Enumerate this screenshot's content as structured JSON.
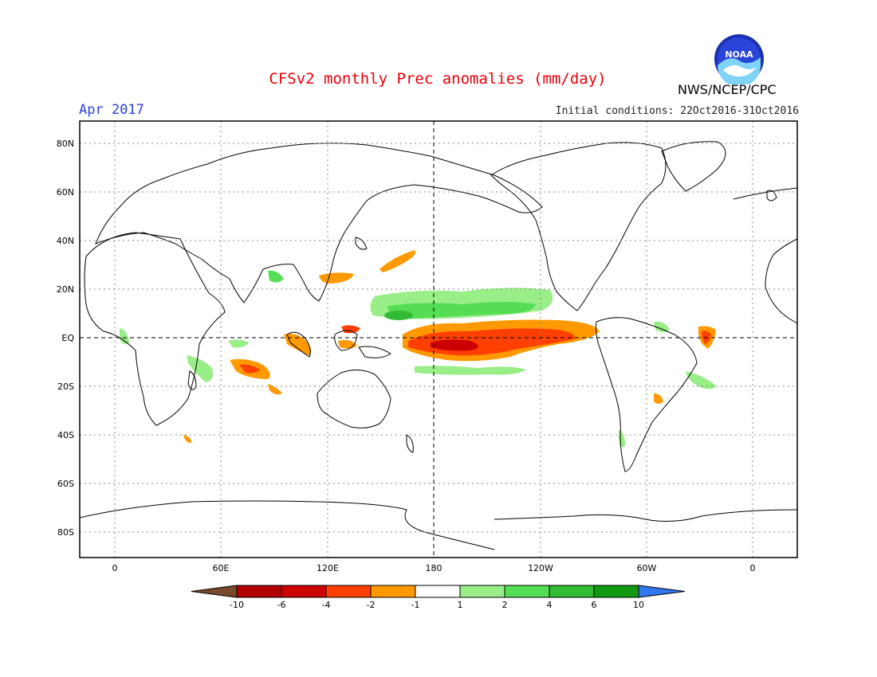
{
  "header": {
    "title": "CFSv2 monthly Prec anomalies (mm/day)",
    "month": "Apr 2017",
    "initial_conditions": "Initial conditions: 22Oct2016-31Oct2016",
    "org": "NWS/NCEP/CPC",
    "logo_text": "NOAA"
  },
  "axes": {
    "lat_labels": [
      "80N",
      "60N",
      "40N",
      "20N",
      "EQ",
      "20S",
      "40S",
      "60S",
      "80S"
    ],
    "lon_labels": [
      "0",
      "60E",
      "120E",
      "180",
      "120W",
      "60W",
      "0"
    ]
  },
  "colorbar": {
    "labels": [
      "-10",
      "-6",
      "-4",
      "-2",
      "-1",
      "1",
      "2",
      "4",
      "6",
      "10"
    ],
    "colors": [
      "#7a4a2c",
      "#b30000",
      "#cc0000",
      "#ff4000",
      "#ff9900",
      "#ffffff",
      "#99ee88",
      "#55dd55",
      "#33bb33",
      "#119911",
      "#3377ee"
    ]
  },
  "anomalies": {
    "dry_color_1": "#ff9900",
    "dry_color_2": "#ff4000",
    "dry_color_3": "#cc0000",
    "wet_color_1": "#99ee88",
    "wet_color_2": "#55dd55",
    "wet_color_3": "#33bb33"
  }
}
